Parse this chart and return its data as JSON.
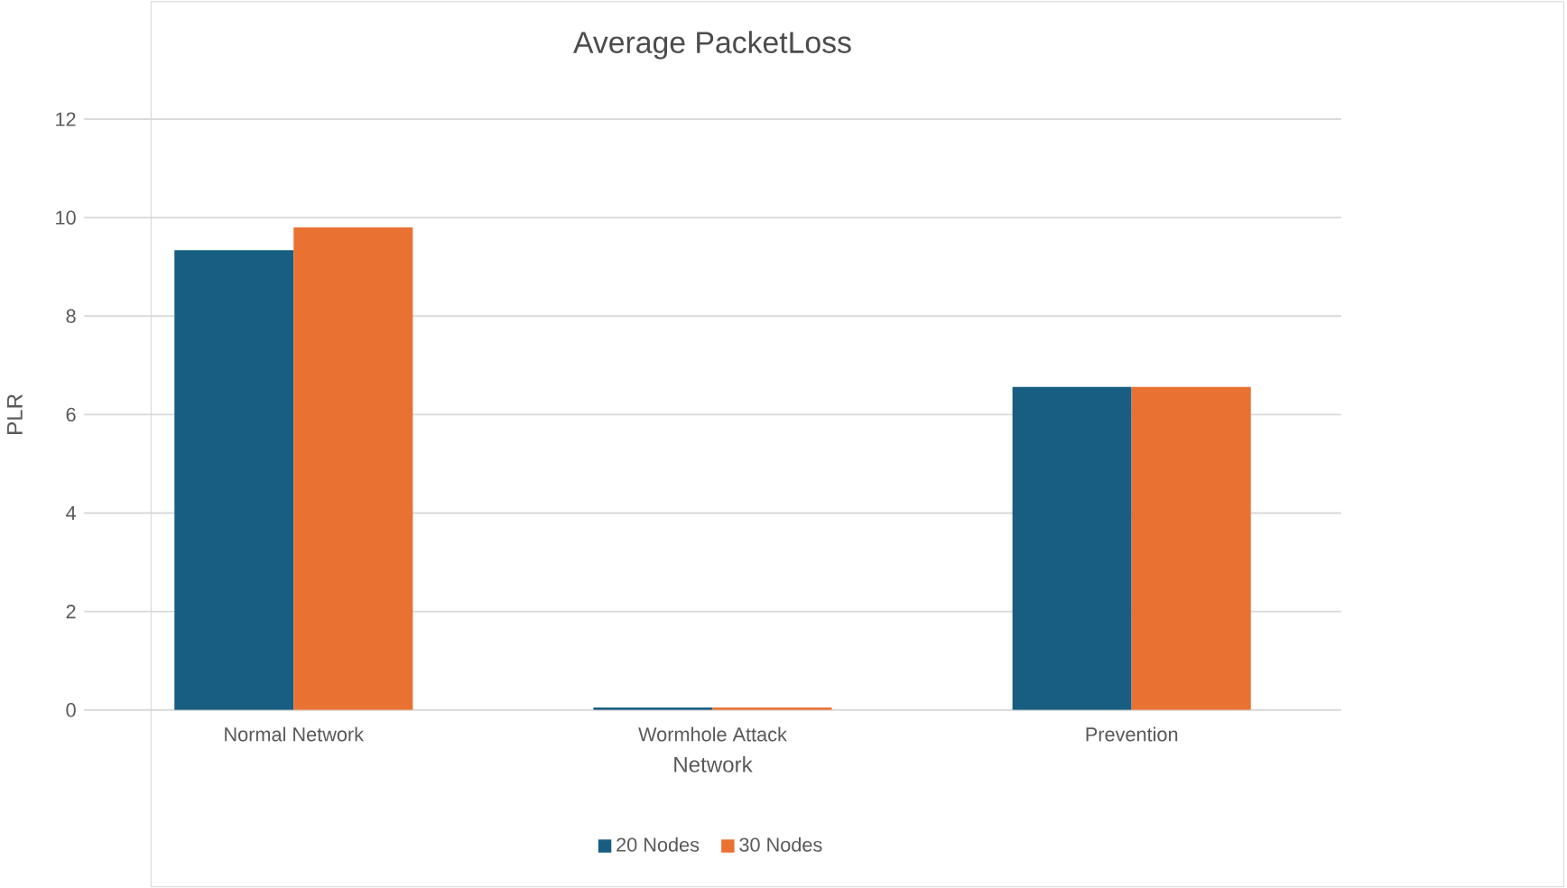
{
  "chart_data": {
    "type": "bar",
    "title": "Average PacketLoss",
    "xlabel": "Network",
    "ylabel": "PLR",
    "categories": [
      "Normal Network",
      "Wormhole Attack",
      "Prevention"
    ],
    "series": [
      {
        "name": "20 Nodes",
        "color": "#175e82",
        "values": [
          9.34,
          0.05,
          6.56
        ]
      },
      {
        "name": "30 Nodes",
        "color": "#e97132",
        "values": [
          9.8,
          0.05,
          6.56
        ]
      }
    ],
    "ylim": [
      0,
      12
    ],
    "yticks": [
      0,
      2,
      4,
      6,
      8,
      10,
      12
    ],
    "grid": "y",
    "legend": "bottom"
  }
}
